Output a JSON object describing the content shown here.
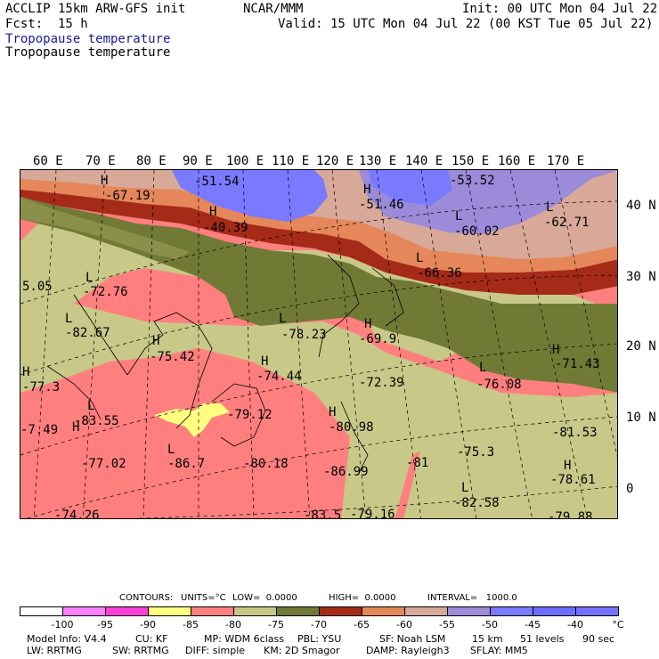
{
  "header": {
    "model_line": "ACCLIP 15km ARW-GFS init",
    "center": "NCAR/MMM",
    "init": "Init: 00 UTC Mon 04 Jul 22",
    "fcst": "Fcst:  15 h",
    "valid": "Valid: 15 UTC Mon 04 Jul 22 (00 KST Tue 05 Jul 22)",
    "field_title_1": "Tropopause temperature",
    "field_title_2": "Tropopause temperature"
  },
  "lon_labels": [
    "60 E",
    "70 E",
    "80 E",
    "90 E",
    "100 E",
    "110 E",
    "120 E",
    "130 E",
    "140 E",
    "150 E",
    "160 E",
    "170 E"
  ],
  "lat_labels": [
    "40 N",
    "30 N",
    "20 N",
    "10 N",
    "0"
  ],
  "map_annotations": [
    {
      "t": "H"
    },
    {
      "t": "-67.19"
    },
    {
      "t": "-51.54"
    },
    {
      "t": "H"
    },
    {
      "t": "-40.39"
    },
    {
      "t": "-53.52"
    },
    {
      "t": "H"
    },
    {
      "t": "-51.46"
    },
    {
      "t": "L"
    },
    {
      "t": "-60.02"
    },
    {
      "t": "L"
    },
    {
      "t": "-62.71"
    },
    {
      "t": "L"
    },
    {
      "t": "-66.36"
    },
    {
      "t": "5.05"
    },
    {
      "t": "L"
    },
    {
      "t": "-72.76"
    },
    {
      "t": "L"
    },
    {
      "t": "-82.67"
    },
    {
      "t": "L"
    },
    {
      "t": "-78.23"
    },
    {
      "t": "H"
    },
    {
      "t": "-69.9"
    },
    {
      "t": "H"
    },
    {
      "t": "-75.42"
    },
    {
      "t": "H"
    },
    {
      "t": "-71.43"
    },
    {
      "t": "H"
    },
    {
      "t": "-77.3"
    },
    {
      "t": "H"
    },
    {
      "t": "-74.44"
    },
    {
      "t": "-72.39"
    },
    {
      "t": "L"
    },
    {
      "t": "-76.08"
    },
    {
      "t": "L"
    },
    {
      "t": "-83.55"
    },
    {
      "t": "-79.12"
    },
    {
      "t": "H"
    },
    {
      "t": "-80.98"
    },
    {
      "t": "-81.53"
    },
    {
      "t": "-7.49"
    },
    {
      "t": "H"
    },
    {
      "t": "L"
    },
    {
      "t": "-77.02"
    },
    {
      "t": "-86.7"
    },
    {
      "t": "-80.18"
    },
    {
      "t": "-75.3"
    },
    {
      "t": "-81"
    },
    {
      "t": "H"
    },
    {
      "t": "-78.61"
    },
    {
      "t": "-86.99"
    },
    {
      "t": "L"
    },
    {
      "t": "-82.58"
    },
    {
      "t": "-74.26"
    },
    {
      "t": "-83.5"
    },
    {
      "t": "-79.16"
    },
    {
      "t": "-79.88"
    }
  ],
  "contour_info": {
    "contours": "CONTOURS:",
    "units": "UNITS=°C",
    "low": "LOW=  0.0000",
    "high": "HIGH=  0.0000",
    "interval": "INTERVAL=   1000.0"
  },
  "colorbar": {
    "colors": [
      "#ffffff",
      "#ff80ff",
      "#ff40d8",
      "#ffff80",
      "#ff7f7f",
      "#c8c888",
      "#707a35",
      "#a52a18",
      "#e5875a",
      "#d8a898",
      "#9b8bd8",
      "#7a7aff",
      "#6d6dff",
      "#7373ff"
    ],
    "labels": [
      "-100",
      "-95",
      "-90",
      "-85",
      "-80",
      "-75",
      "-70",
      "-65",
      "-60",
      "-55",
      "-50",
      "-45",
      "-40",
      "°C"
    ]
  },
  "footer": {
    "line1": [
      "Model Info: V4.4",
      "CU: KF",
      "MP: WDM 6class",
      "PBL: YSU",
      "SF: Noah LSM",
      "15 km",
      "51 levels",
      "90 sec"
    ],
    "line2": [
      "LW: RRTMG",
      "SW: RRTMG",
      "DIFF: simple",
      "KM: 2D Smagor",
      "DAMP: Rayleigh3",
      "SFLAY: MM5"
    ]
  }
}
